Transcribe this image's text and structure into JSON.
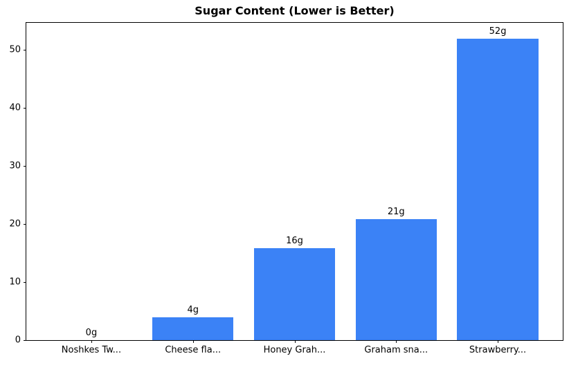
{
  "chart_data": {
    "type": "bar",
    "title": "Sugar Content (Lower is Better)",
    "xlabel": "",
    "ylabel": "",
    "categories": [
      "Noshkes Tw...",
      "Cheese fla...",
      "Honey Grah...",
      "Graham sna...",
      "Strawberry..."
    ],
    "values": [
      0,
      3.9,
      15.8,
      20.8,
      51.9
    ],
    "bar_labels": [
      "0g",
      "4g",
      "16g",
      "21g",
      "52g"
    ],
    "yticks": [
      0,
      10,
      20,
      30,
      40,
      50
    ],
    "ylim": [
      0,
      54.6
    ],
    "xlim": [
      -0.64,
      4.64
    ],
    "bar_width_frac": 0.8,
    "grid": false,
    "legend": "none",
    "bar_color": "#3b82f6",
    "axis_color": "#000000",
    "background_color": "#ffffff"
  }
}
